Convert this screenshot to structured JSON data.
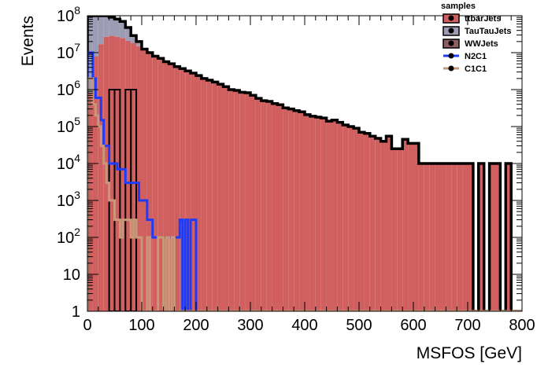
{
  "chart_data": {
    "type": "histogram-stacked",
    "xlabel": "MSFOS [GeV]",
    "ylabel": "Events",
    "xlim": [
      0,
      800
    ],
    "ylim": [
      1,
      100000000
    ],
    "yscale": "log",
    "bin_width": 10,
    "x_ticks": [
      {
        "v": 0,
        "label": "0"
      },
      {
        "v": 100,
        "label": "100"
      },
      {
        "v": 200,
        "label": "200"
      },
      {
        "v": 300,
        "label": "300"
      },
      {
        "v": 400,
        "label": "400"
      },
      {
        "v": 500,
        "label": "500"
      },
      {
        "v": 600,
        "label": "600"
      },
      {
        "v": 700,
        "label": "700"
      },
      {
        "v": 800,
        "label": "800"
      }
    ],
    "y_ticks": [
      {
        "v": 1,
        "base": "1",
        "exp": ""
      },
      {
        "v": 10,
        "base": "10",
        "exp": ""
      },
      {
        "v": 100,
        "base": "10",
        "exp": "2"
      },
      {
        "v": 1000,
        "base": "10",
        "exp": "3"
      },
      {
        "v": 10000,
        "base": "10",
        "exp": "4"
      },
      {
        "v": 100000,
        "base": "10",
        "exp": "5"
      },
      {
        "v": 1000000,
        "base": "10",
        "exp": "6"
      },
      {
        "v": 10000000,
        "base": "10",
        "exp": "7"
      },
      {
        "v": 100000000,
        "base": "10",
        "exp": "8"
      }
    ],
    "legend": {
      "title": "samples",
      "placement": "top-right",
      "entries": [
        {
          "name": "ttbarJets",
          "style": "fill",
          "color": "#d06060"
        },
        {
          "name": "TauTauJets",
          "style": "fill",
          "color": "#9c9cb4"
        },
        {
          "name": "WWJets",
          "style": "fill",
          "color": "#8e5e60"
        },
        {
          "name": "N2C1",
          "style": "line",
          "color": "#1a3cff"
        },
        {
          "name": "C1C1",
          "style": "line",
          "color": "#c9987a"
        }
      ]
    },
    "stack": [
      {
        "name": "ttbarJets",
        "color": "#d06060",
        "values": [
          800000,
          8000000,
          17000000,
          27000000,
          29000000,
          27000000,
          25000000,
          21000000,
          18000000,
          15000000,
          12500000,
          10000000,
          8000000,
          7000000,
          5700000,
          5000000,
          4200000,
          3700000,
          3200000,
          2800000,
          2400000,
          2000000,
          1800000,
          1600000,
          1400000,
          1200000,
          1000000,
          950000,
          850000,
          820000,
          700000,
          580000,
          500000,
          480000,
          420000,
          390000,
          320000,
          300000,
          270000,
          250000,
          210000,
          190000,
          180000,
          170000,
          140000,
          150000,
          130000,
          110000,
          100000,
          90000,
          70000,
          65000,
          55000,
          48000,
          40000,
          55000,
          25000,
          25000,
          45000,
          35000,
          35000,
          10000,
          10000,
          10000,
          10000,
          10000,
          10000,
          10000,
          10000,
          10000,
          10000,
          1,
          10000,
          1,
          10000,
          10000,
          1,
          10000,
          1,
          1,
          1,
          1,
          1,
          1,
          1,
          1,
          1,
          1,
          1,
          1,
          1,
          1,
          1,
          1,
          1,
          1,
          1,
          1,
          1,
          1
        ]
      },
      {
        "name": "TauTauJets",
        "color": "#9c9cb4",
        "values": [
          100000000,
          92000000,
          83000000,
          73000000,
          61000000,
          53000000,
          45000000,
          26000000,
          10000000,
          5000000,
          1,
          1,
          1,
          1,
          1,
          1,
          1,
          1,
          1,
          1,
          1,
          1,
          1,
          1,
          1,
          1,
          1,
          1,
          1,
          1,
          1,
          1,
          1,
          1,
          1,
          1,
          1,
          1,
          1,
          1,
          1,
          1,
          1,
          1,
          1,
          1,
          1,
          1,
          1,
          1,
          1,
          1,
          1,
          1,
          1,
          1,
          1,
          1,
          1,
          1,
          1,
          1,
          1,
          1,
          1,
          1,
          1,
          1,
          1,
          1,
          1,
          1,
          1,
          1,
          1,
          1,
          1,
          1,
          1,
          1,
          1,
          1,
          1,
          1,
          1,
          1,
          1,
          1,
          1,
          1,
          1,
          1,
          1,
          1,
          1,
          1,
          1,
          1,
          1,
          1
        ]
      },
      {
        "name": "WWJets",
        "color": "#8e5e60",
        "values": [
          1,
          1,
          1,
          1,
          1000000,
          1000000,
          1,
          1000000,
          1000000,
          1,
          1,
          1,
          1,
          1,
          1,
          1,
          1,
          1,
          1,
          1,
          1,
          1,
          1,
          1,
          1,
          1,
          1,
          1,
          1,
          1,
          1,
          1,
          1,
          1,
          1,
          1,
          1,
          1,
          1,
          1,
          1,
          1,
          1,
          1,
          1,
          1,
          1,
          1,
          1,
          1,
          1,
          1,
          1,
          1,
          1,
          1,
          1,
          1,
          1,
          1,
          1,
          1,
          1,
          1,
          1,
          1,
          1,
          1,
          1,
          1,
          1,
          1,
          1,
          1,
          1,
          1,
          1,
          1,
          1,
          1,
          1,
          1,
          1,
          1,
          1,
          1,
          1,
          1,
          1,
          1,
          1,
          1,
          1,
          1,
          1,
          1,
          1,
          1,
          1,
          1
        ]
      }
    ],
    "lines": [
      {
        "name": "N2C1",
        "color": "#1a3cff",
        "bins": [
          {
            "x0": 0,
            "x1": 10,
            "y": 10000000
          },
          {
            "x0": 10,
            "x1": 15,
            "y": 2000000
          },
          {
            "x0": 15,
            "x1": 20,
            "y": 600000
          },
          {
            "x0": 20,
            "x1": 25,
            "y": 600000
          },
          {
            "x0": 25,
            "x1": 30,
            "y": 150000
          },
          {
            "x0": 30,
            "x1": 35,
            "y": 30000
          },
          {
            "x0": 35,
            "x1": 40,
            "y": 30000
          },
          {
            "x0": 40,
            "x1": 45,
            "y": 10000
          },
          {
            "x0": 45,
            "x1": 50,
            "y": 10000
          },
          {
            "x0": 50,
            "x1": 55,
            "y": 10000
          },
          {
            "x0": 55,
            "x1": 60,
            "y": 7000
          },
          {
            "x0": 60,
            "x1": 65,
            "y": 7000
          },
          {
            "x0": 65,
            "x1": 70,
            "y": 7000
          },
          {
            "x0": 70,
            "x1": 75,
            "y": 3000
          },
          {
            "x0": 75,
            "x1": 80,
            "y": 3000
          },
          {
            "x0": 80,
            "x1": 85,
            "y": 3000
          },
          {
            "x0": 85,
            "x1": 90,
            "y": 3000
          },
          {
            "x0": 90,
            "x1": 95,
            "y": 3000
          },
          {
            "x0": 95,
            "x1": 100,
            "y": 1000
          },
          {
            "x0": 100,
            "x1": 110,
            "y": 1000
          },
          {
            "x0": 110,
            "x1": 120,
            "y": 300
          },
          {
            "x0": 120,
            "x1": 130,
            "y": 100
          },
          {
            "x0": 130,
            "x1": 140,
            "y": 100
          },
          {
            "x0": 140,
            "x1": 150,
            "y": 100
          },
          {
            "x0": 150,
            "x1": 160,
            "y": 100
          },
          {
            "x0": 160,
            "x1": 170,
            "y": 100
          },
          {
            "x0": 170,
            "x1": 175,
            "y": 300
          },
          {
            "x0": 175,
            "x1": 180,
            "y": 1
          },
          {
            "x0": 180,
            "x1": 185,
            "y": 300
          },
          {
            "x0": 185,
            "x1": 190,
            "y": 1
          },
          {
            "x0": 190,
            "x1": 200,
            "y": 300
          }
        ]
      },
      {
        "name": "C1C1",
        "color": "#c9987a",
        "bins": [
          {
            "x0": 0,
            "x1": 10,
            "y": 2000000
          },
          {
            "x0": 10,
            "x1": 15,
            "y": 400000
          },
          {
            "x0": 15,
            "x1": 20,
            "y": 200000
          },
          {
            "x0": 20,
            "x1": 25,
            "y": 100000
          },
          {
            "x0": 25,
            "x1": 30,
            "y": 30000
          },
          {
            "x0": 30,
            "x1": 35,
            "y": 10000
          },
          {
            "x0": 35,
            "x1": 40,
            "y": 3000
          },
          {
            "x0": 40,
            "x1": 45,
            "y": 1000
          },
          {
            "x0": 45,
            "x1": 50,
            "y": 1000
          },
          {
            "x0": 50,
            "x1": 55,
            "y": 300
          },
          {
            "x0": 55,
            "x1": 60,
            "y": 300
          },
          {
            "x0": 60,
            "x1": 65,
            "y": 100
          },
          {
            "x0": 65,
            "x1": 70,
            "y": 300
          },
          {
            "x0": 70,
            "x1": 75,
            "y": 300
          },
          {
            "x0": 75,
            "x1": 80,
            "y": 300
          },
          {
            "x0": 80,
            "x1": 85,
            "y": 100
          },
          {
            "x0": 85,
            "x1": 90,
            "y": 300
          },
          {
            "x0": 90,
            "x1": 100,
            "y": 100
          },
          {
            "x0": 100,
            "x1": 110,
            "y": 1
          },
          {
            "x0": 110,
            "x1": 115,
            "y": 100
          },
          {
            "x0": 115,
            "x1": 120,
            "y": 1
          },
          {
            "x0": 120,
            "x1": 130,
            "y": 1
          },
          {
            "x0": 130,
            "x1": 140,
            "y": 100
          },
          {
            "x0": 140,
            "x1": 145,
            "y": 1
          },
          {
            "x0": 145,
            "x1": 150,
            "y": 100
          },
          {
            "x0": 150,
            "x1": 155,
            "y": 1
          },
          {
            "x0": 155,
            "x1": 160,
            "y": 100
          },
          {
            "x0": 160,
            "x1": 170,
            "y": 1
          }
        ]
      }
    ]
  }
}
